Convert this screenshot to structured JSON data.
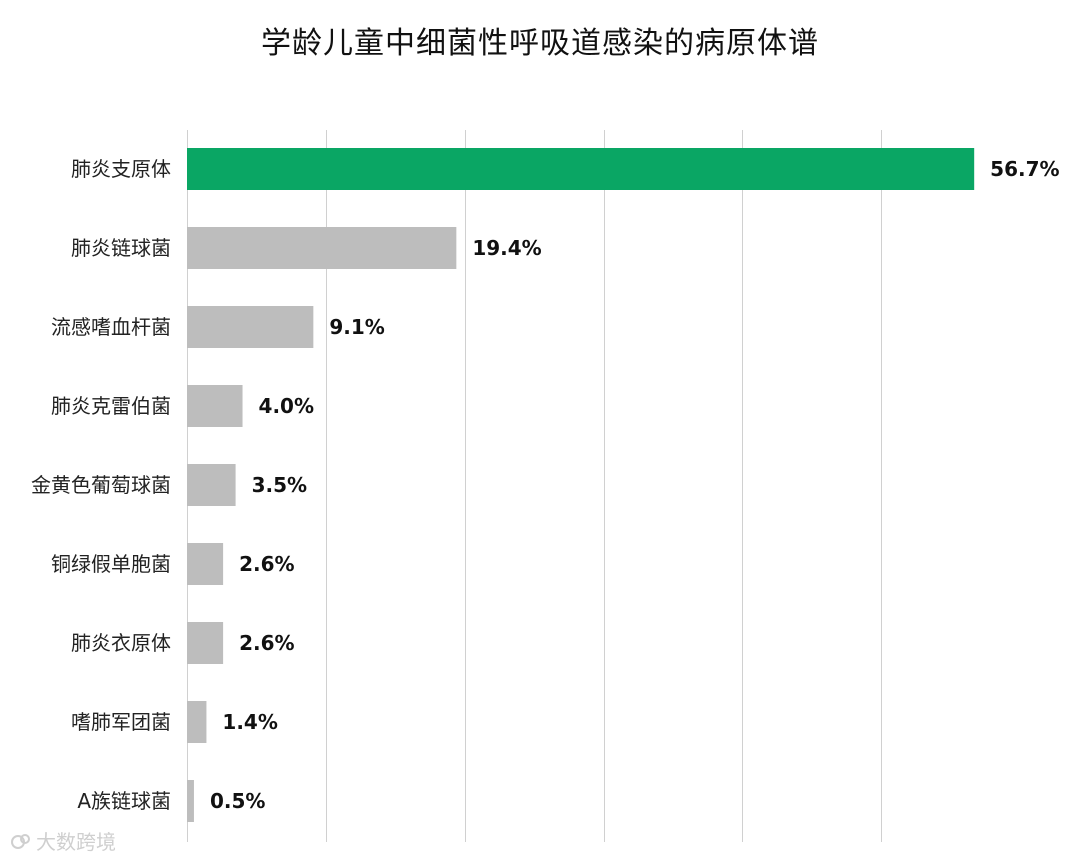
{
  "chart_data": {
    "type": "bar",
    "orientation": "horizontal",
    "title": "学龄儿童中细菌性呼吸道感染的病原体谱",
    "categories": [
      "肺炎支原体",
      "肺炎链球菌",
      "流感嗜血杆菌",
      "肺炎克雷伯菌",
      "金黄色葡萄球菌",
      "铜绿假单胞菌",
      "肺炎衣原体",
      "嗜肺军团菌",
      "A族链球菌"
    ],
    "values": [
      56.7,
      19.4,
      9.1,
      4.0,
      3.5,
      2.6,
      2.6,
      1.4,
      0.5
    ],
    "value_labels": [
      "56.7%",
      "19.4%",
      "9.1%",
      "4.0%",
      "3.5%",
      "2.6%",
      "2.6%",
      "1.4%",
      "0.5%"
    ],
    "xlim": [
      0,
      60
    ],
    "grid": true,
    "colors": {
      "highlight": "#0aa664",
      "default": "#bdbdbd"
    },
    "highlight_index": 0
  },
  "watermark": {
    "text": "大数跨境",
    "icon": "logo-icon"
  }
}
